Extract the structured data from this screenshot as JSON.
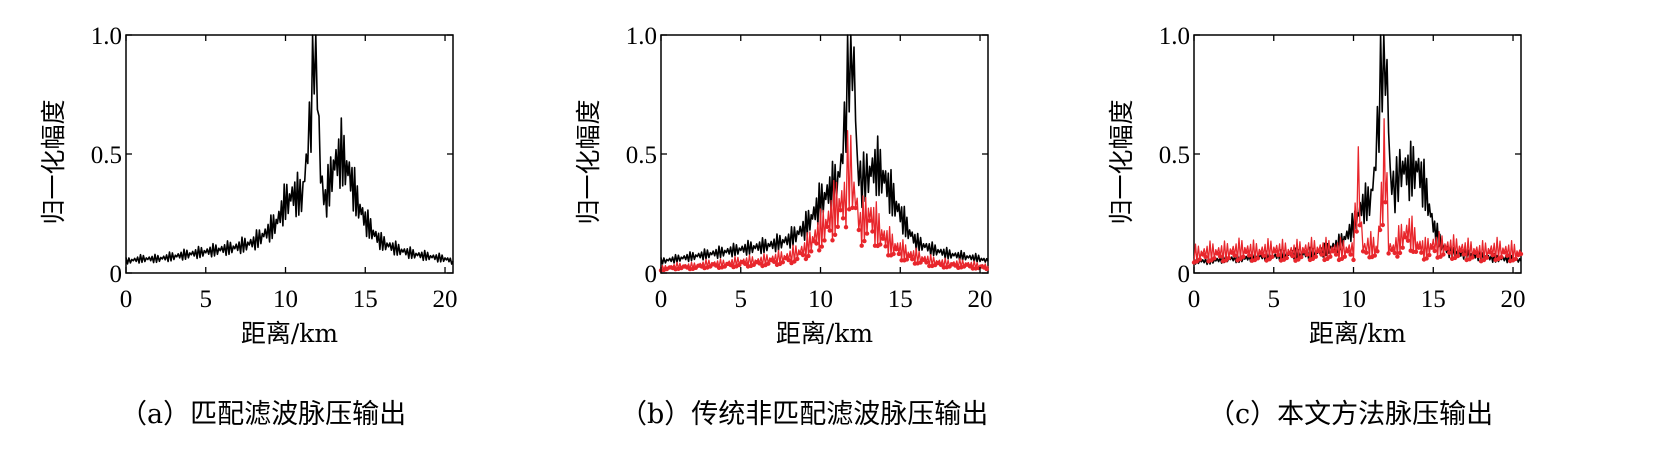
{
  "chart_data": [
    {
      "type": "line",
      "caption": "（a）匹配滤波脉压输出",
      "xlabel": "距离/km",
      "ylabel": "归一化幅度",
      "xlim": [
        0,
        20.5
      ],
      "ylim": [
        0,
        1.0
      ],
      "xticks": [
        0,
        5,
        10,
        15,
        20
      ],
      "xtick_labels": [
        "0",
        "5",
        "10",
        "15",
        "20"
      ],
      "yticks": [
        0,
        0.5,
        1.0
      ],
      "ytick_labels": [
        "0",
        "0.5",
        "1.0"
      ],
      "grid": false,
      "series": [
        {
          "color": "#000000",
          "marker": "none",
          "x": [
            0,
            1,
            2,
            3,
            4,
            5,
            6,
            7,
            8,
            9,
            9.5,
            10,
            10.5,
            11,
            11.3,
            11.6,
            11.8,
            12.0,
            12.2,
            12.5,
            13,
            13.5,
            14,
            14.5,
            15,
            15.5,
            16,
            17,
            18,
            19,
            20,
            20.5
          ],
          "y": [
            0.05,
            0.06,
            0.06,
            0.07,
            0.08,
            0.09,
            0.1,
            0.11,
            0.13,
            0.18,
            0.22,
            0.3,
            0.33,
            0.32,
            0.45,
            0.7,
            1.0,
            0.85,
            0.4,
            0.3,
            0.45,
            0.5,
            0.42,
            0.3,
            0.22,
            0.17,
            0.13,
            0.1,
            0.08,
            0.07,
            0.06,
            0.05
          ]
        }
      ]
    },
    {
      "type": "line",
      "caption": "（b）传统非匹配滤波脉压输出",
      "xlabel": "距离/km",
      "ylabel": "归一化幅度",
      "xlim": [
        0,
        20.5
      ],
      "ylim": [
        0,
        1.0
      ],
      "xticks": [
        0,
        5,
        10,
        15,
        20
      ],
      "xtick_labels": [
        "0",
        "5",
        "10",
        "15",
        "20"
      ],
      "yticks": [
        0,
        0.5,
        1.0
      ],
      "ytick_labels": [
        "0",
        "0.5",
        "1.0"
      ],
      "grid": false,
      "series": [
        {
          "color": "#000000",
          "marker": "none",
          "x": [
            0,
            1,
            2,
            3,
            4,
            5,
            6,
            7,
            8,
            9,
            9.5,
            10,
            10.5,
            11,
            11.3,
            11.6,
            11.9,
            12.1,
            12.3,
            12.6,
            13,
            13.5,
            14,
            14.5,
            15,
            15.5,
            16,
            17,
            18,
            19,
            20,
            20.5
          ],
          "y": [
            0.05,
            0.06,
            0.07,
            0.08,
            0.09,
            0.1,
            0.11,
            0.12,
            0.14,
            0.19,
            0.24,
            0.3,
            0.34,
            0.38,
            0.45,
            0.7,
            1.0,
            0.9,
            0.45,
            0.38,
            0.42,
            0.45,
            0.4,
            0.32,
            0.25,
            0.18,
            0.13,
            0.1,
            0.08,
            0.07,
            0.06,
            0.05
          ]
        },
        {
          "color": "#e8262c",
          "marker": "dot",
          "x": [
            0,
            1,
            2,
            3,
            4,
            5,
            6,
            7,
            8,
            9,
            9.5,
            10,
            10.5,
            11,
            11.5,
            11.8,
            12.0,
            12.2,
            12.5,
            13,
            13.5,
            14,
            14.5,
            15,
            15.5,
            16,
            17,
            18,
            19,
            20,
            20.5
          ],
          "y": [
            0.02,
            0.03,
            0.03,
            0.04,
            0.04,
            0.05,
            0.05,
            0.06,
            0.07,
            0.1,
            0.14,
            0.18,
            0.22,
            0.28,
            0.3,
            0.45,
            0.4,
            0.3,
            0.2,
            0.25,
            0.2,
            0.15,
            0.12,
            0.1,
            0.08,
            0.07,
            0.05,
            0.04,
            0.04,
            0.03,
            0.03
          ]
        }
      ]
    },
    {
      "type": "line",
      "caption": "（c）本文方法脉压输出",
      "xlabel": "距离/km",
      "ylabel": "归一化幅度",
      "xlim": [
        0,
        20.5
      ],
      "ylim": [
        0,
        1.0
      ],
      "xticks": [
        0,
        5,
        10,
        15,
        20
      ],
      "xtick_labels": [
        "0",
        "5",
        "10",
        "15",
        "20"
      ],
      "yticks": [
        0,
        0.5,
        1.0
      ],
      "ytick_labels": [
        "0",
        "0.5",
        "1.0"
      ],
      "grid": false,
      "series": [
        {
          "color": "#000000",
          "marker": "none",
          "x": [
            0,
            1,
            2,
            3,
            4,
            5,
            6,
            7,
            8,
            9,
            9.5,
            10,
            10.5,
            11,
            11.3,
            11.6,
            11.9,
            12.1,
            12.3,
            12.6,
            13,
            13.5,
            14,
            14.5,
            15,
            15.5,
            16,
            17,
            18,
            19,
            20,
            20.5
          ],
          "y": [
            0.05,
            0.05,
            0.06,
            0.06,
            0.07,
            0.07,
            0.08,
            0.08,
            0.09,
            0.12,
            0.15,
            0.2,
            0.28,
            0.3,
            0.4,
            0.7,
            1.0,
            0.85,
            0.4,
            0.35,
            0.45,
            0.42,
            0.45,
            0.35,
            0.2,
            0.12,
            0.09,
            0.08,
            0.07,
            0.06,
            0.06,
            0.05
          ]
        },
        {
          "color": "#e8262c",
          "marker": "dot",
          "x": [
            0,
            1,
            2,
            3,
            4,
            5,
            6,
            7,
            8,
            9,
            10,
            10.3,
            10.6,
            11,
            11.5,
            12.0,
            12.2,
            12.5,
            13,
            13.5,
            14,
            14.5,
            15,
            16,
            17,
            18,
            19,
            20,
            20.5
          ],
          "y": [
            0.08,
            0.09,
            0.09,
            0.1,
            0.09,
            0.1,
            0.09,
            0.1,
            0.1,
            0.1,
            0.1,
            0.39,
            0.1,
            0.12,
            0.1,
            0.5,
            0.12,
            0.1,
            0.15,
            0.18,
            0.12,
            0.1,
            0.12,
            0.11,
            0.1,
            0.09,
            0.1,
            0.09,
            0.08
          ]
        }
      ]
    }
  ]
}
